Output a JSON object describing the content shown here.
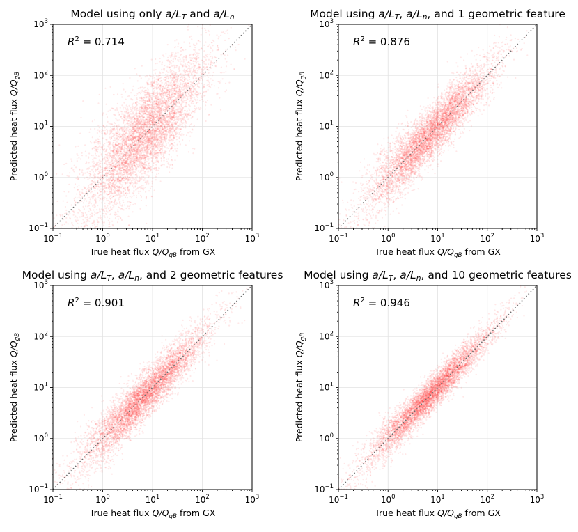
{
  "figure": {
    "point_color": "#ff2a2a",
    "diagonal_color": "#6e6e6e",
    "point_count_per_panel": 6000
  },
  "chart_data": [
    {
      "type": "scatter",
      "title_parts": [
        {
          "t": "Model using only "
        },
        {
          "t": "a/L",
          "i": true
        },
        {
          "t": "T",
          "i": true,
          "sub": true
        },
        {
          "t": " and "
        },
        {
          "t": "a/L",
          "i": true
        },
        {
          "t": "n",
          "i": true,
          "sub": true
        }
      ],
      "xlabel_parts": [
        {
          "t": "True heat flux "
        },
        {
          "t": "Q/Q",
          "i": true
        },
        {
          "t": "gB",
          "i": true,
          "sub": true
        },
        {
          "t": " from GX"
        }
      ],
      "ylabel_parts": [
        {
          "t": "Predicted heat flux "
        },
        {
          "t": "Q/Q",
          "i": true
        },
        {
          "t": "gB",
          "i": true,
          "sub": true
        }
      ],
      "xscale": "log",
      "yscale": "log",
      "xlim": [
        0.1,
        1000
      ],
      "ylim": [
        0.1,
        1000
      ],
      "ticks": [
        0.1,
        1,
        10,
        100,
        1000
      ],
      "tick_labels": [
        {
          "base": "10",
          "exp": "−1"
        },
        {
          "base": "10",
          "exp": "0"
        },
        {
          "base": "10",
          "exp": "1"
        },
        {
          "base": "10",
          "exp": "2"
        },
        {
          "base": "10",
          "exp": "3"
        }
      ],
      "annotation": {
        "r2_label": "R",
        "r2_power": "2",
        "r2_text": " = 0.714",
        "r2": 0.714
      },
      "reference_line": "y = x",
      "grid": true
    },
    {
      "type": "scatter",
      "title_parts": [
        {
          "t": "Model using "
        },
        {
          "t": "a/L",
          "i": true
        },
        {
          "t": "T",
          "i": true,
          "sub": true
        },
        {
          "t": ", "
        },
        {
          "t": "a/L",
          "i": true
        },
        {
          "t": "n",
          "i": true,
          "sub": true
        },
        {
          "t": ", and 1 geometric feature"
        }
      ],
      "xlabel_parts": [
        {
          "t": "True heat flux "
        },
        {
          "t": "Q/Q",
          "i": true
        },
        {
          "t": "gB",
          "i": true,
          "sub": true
        },
        {
          "t": " from GX"
        }
      ],
      "ylabel_parts": [
        {
          "t": "Predicted heat flux "
        },
        {
          "t": "Q/Q",
          "i": true
        },
        {
          "t": "gB",
          "i": true,
          "sub": true
        }
      ],
      "xscale": "log",
      "yscale": "log",
      "xlim": [
        0.1,
        1000
      ],
      "ylim": [
        0.1,
        1000
      ],
      "ticks": [
        0.1,
        1,
        10,
        100,
        1000
      ],
      "tick_labels": [
        {
          "base": "10",
          "exp": "−1"
        },
        {
          "base": "10",
          "exp": "0"
        },
        {
          "base": "10",
          "exp": "1"
        },
        {
          "base": "10",
          "exp": "2"
        },
        {
          "base": "10",
          "exp": "3"
        }
      ],
      "annotation": {
        "r2_label": "R",
        "r2_power": "2",
        "r2_text": " = 0.876",
        "r2": 0.876
      },
      "reference_line": "y = x",
      "grid": true
    },
    {
      "type": "scatter",
      "title_parts": [
        {
          "t": "Model using "
        },
        {
          "t": "a/L",
          "i": true
        },
        {
          "t": "T",
          "i": true,
          "sub": true
        },
        {
          "t": ", "
        },
        {
          "t": "a/L",
          "i": true
        },
        {
          "t": "n",
          "i": true,
          "sub": true
        },
        {
          "t": ", and 2 geometric features"
        }
      ],
      "xlabel_parts": [
        {
          "t": "True heat flux "
        },
        {
          "t": "Q/Q",
          "i": true
        },
        {
          "t": "gB",
          "i": true,
          "sub": true
        },
        {
          "t": " from GX"
        }
      ],
      "ylabel_parts": [
        {
          "t": "Predicted heat flux "
        },
        {
          "t": "Q/Q",
          "i": true
        },
        {
          "t": "gB",
          "i": true,
          "sub": true
        }
      ],
      "xscale": "log",
      "yscale": "log",
      "xlim": [
        0.1,
        1000
      ],
      "ylim": [
        0.1,
        1000
      ],
      "ticks": [
        0.1,
        1,
        10,
        100,
        1000
      ],
      "tick_labels": [
        {
          "base": "10",
          "exp": "−1"
        },
        {
          "base": "10",
          "exp": "0"
        },
        {
          "base": "10",
          "exp": "1"
        },
        {
          "base": "10",
          "exp": "2"
        },
        {
          "base": "10",
          "exp": "3"
        }
      ],
      "annotation": {
        "r2_label": "R",
        "r2_power": "2",
        "r2_text": " = 0.901",
        "r2": 0.901
      },
      "reference_line": "y = x",
      "grid": true
    },
    {
      "type": "scatter",
      "title_parts": [
        {
          "t": "Model using "
        },
        {
          "t": "a/L",
          "i": true
        },
        {
          "t": "T",
          "i": true,
          "sub": true
        },
        {
          "t": ", "
        },
        {
          "t": "a/L",
          "i": true
        },
        {
          "t": "n",
          "i": true,
          "sub": true
        },
        {
          "t": ", and 10 geometric features"
        }
      ],
      "xlabel_parts": [
        {
          "t": "True heat flux "
        },
        {
          "t": "Q/Q",
          "i": true
        },
        {
          "t": "gB",
          "i": true,
          "sub": true
        },
        {
          "t": " from GX"
        }
      ],
      "ylabel_parts": [
        {
          "t": "Predicted heat flux "
        },
        {
          "t": "Q/Q",
          "i": true
        },
        {
          "t": "gB",
          "i": true,
          "sub": true
        }
      ],
      "xscale": "log",
      "yscale": "log",
      "xlim": [
        0.1,
        1000
      ],
      "ylim": [
        0.1,
        1000
      ],
      "ticks": [
        0.1,
        1,
        10,
        100,
        1000
      ],
      "tick_labels": [
        {
          "base": "10",
          "exp": "−1"
        },
        {
          "base": "10",
          "exp": "0"
        },
        {
          "base": "10",
          "exp": "1"
        },
        {
          "base": "10",
          "exp": "2"
        },
        {
          "base": "10",
          "exp": "3"
        }
      ],
      "annotation": {
        "r2_label": "R",
        "r2_power": "2",
        "r2_text": " = 0.946",
        "r2": 0.946
      },
      "reference_line": "y = x",
      "grid": true
    }
  ]
}
